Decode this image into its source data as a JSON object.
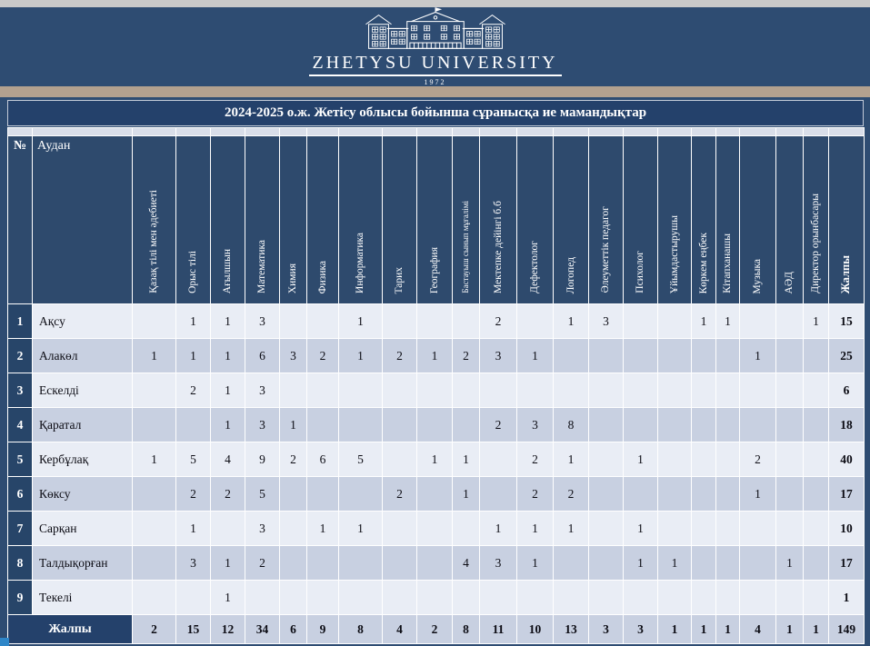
{
  "banner": {
    "university": "ZHETYSU UNIVERSITY",
    "year": "1972"
  },
  "title": "2024-2025 о.ж. Жетісу облысы бойынша сұранысқа ие мамандықтар",
  "table": {
    "corner_headers": [
      "№",
      "Аудан"
    ],
    "specialty_headers": [
      "Қазақ тілі  мен әдебиеті",
      "Орыс тілі",
      "Ағылшын",
      "Математика",
      "Химия",
      "Физика",
      "Информатика",
      "Тарих",
      "География",
      "Бастауыш сынып мұғалімі",
      "Мектепке дейінгі  б.б",
      "Дефектолог",
      "Логопед",
      "Әлеуметтік  педагог",
      "Психолог",
      "Ұйымдастырушы",
      "Көркем еңбек",
      "Кітапханашы",
      "Музыка",
      "АӘД",
      "Директор орынбасары"
    ],
    "total_header": "Жалпы",
    "rows": [
      {
        "num": "1",
        "district": "Ақсу",
        "values": [
          "",
          "1",
          "1",
          "3",
          "",
          "",
          "1",
          "",
          "",
          "",
          "2",
          "",
          "1",
          "3",
          "",
          "",
          "1",
          "1",
          "",
          "",
          "1"
        ],
        "total": "15"
      },
      {
        "num": "2",
        "district": "Алакөл",
        "values": [
          "1",
          "1",
          "1",
          "6",
          "3",
          "2",
          "1",
          "2",
          "1",
          "2",
          "3",
          "1",
          "",
          "",
          "",
          "",
          "",
          "",
          "1",
          "",
          ""
        ],
        "total": "25"
      },
      {
        "num": "3",
        "district": "Ескелді",
        "values": [
          "",
          "2",
          "1",
          "3",
          "",
          "",
          "",
          "",
          "",
          "",
          "",
          "",
          "",
          "",
          "",
          "",
          "",
          "",
          "",
          "",
          ""
        ],
        "total": "6"
      },
      {
        "num": "4",
        "district": "Қаратал",
        "values": [
          "",
          "",
          "1",
          "3",
          "1",
          "",
          "",
          "",
          "",
          "",
          "2",
          "3",
          "8",
          "",
          "",
          "",
          "",
          "",
          "",
          "",
          ""
        ],
        "total": "18"
      },
      {
        "num": "5",
        "district": "Кербұлақ",
        "values": [
          "1",
          "5",
          "4",
          "9",
          "2",
          "6",
          "5",
          "",
          "1",
          "1",
          "",
          "2",
          "1",
          "",
          "1",
          "",
          "",
          "",
          "2",
          "",
          ""
        ],
        "total": "40"
      },
      {
        "num": "6",
        "district": "Көксу",
        "values": [
          "",
          "2",
          "2",
          "5",
          "",
          "",
          "",
          "2",
          "",
          "1",
          "",
          "2",
          "2",
          "",
          "",
          "",
          "",
          "",
          "1",
          "",
          ""
        ],
        "total": "17"
      },
      {
        "num": "7",
        "district": "Сарқан",
        "values": [
          "",
          "1",
          "",
          "3",
          "",
          "1",
          "1",
          "",
          "",
          "",
          "1",
          "1",
          "1",
          "",
          "1",
          "",
          "",
          "",
          "",
          "",
          ""
        ],
        "total": "10"
      },
      {
        "num": "8",
        "district": "Талдықорған",
        "values": [
          "",
          "3",
          "1",
          "2",
          "",
          "",
          "",
          "",
          "",
          "4",
          "3",
          "1",
          "",
          "",
          "1",
          "1",
          "",
          "",
          "",
          "1",
          ""
        ],
        "total": "17"
      },
      {
        "num": "9",
        "district": "Текелі",
        "values": [
          "",
          "",
          "1",
          "",
          "",
          "",
          "",
          "",
          "",
          "",
          "",
          "",
          "",
          "",
          "",
          "",
          "",
          "",
          "",
          "",
          ""
        ],
        "total": "1"
      }
    ],
    "totals_row": {
      "label": "Жалпы",
      "values": [
        "2",
        "15",
        "12",
        "34",
        "6",
        "9",
        "8",
        "4",
        "2",
        "8",
        "11",
        "10",
        "13",
        "3",
        "3",
        "1",
        "1",
        "1",
        "4",
        "1",
        "1"
      ],
      "total": "149"
    }
  },
  "colors": {
    "page_background": "#2e4c72",
    "header_navy": "#2e4a6d",
    "title_navy": "#24416b",
    "row_light": "#e9edf5",
    "row_dark": "#c8d0e1",
    "tan_bar": "#b3a18f",
    "top_strip": "#c9c9c9",
    "bottom_accent": "#2e86c8"
  }
}
